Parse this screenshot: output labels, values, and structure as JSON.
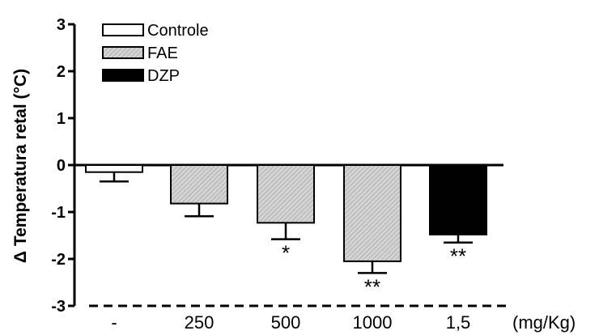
{
  "chart_data": {
    "type": "bar",
    "ylabel": "Δ Temperatura retal (°C)",
    "xunit": "(mg/Kg)",
    "ylim": [
      -3,
      3
    ],
    "yticks": [
      "3",
      "2",
      "1",
      "0",
      "-1",
      "-2",
      "-3"
    ],
    "categories": [
      "-",
      "250",
      "500",
      "1000",
      "1,5"
    ],
    "values": [
      -0.15,
      -0.82,
      -1.23,
      -2.05,
      -1.48
    ],
    "errors": [
      0.2,
      0.27,
      0.35,
      0.25,
      0.17
    ],
    "groups": [
      "Controle",
      "FAE",
      "FAE",
      "FAE",
      "DZP"
    ],
    "significance": [
      "",
      "",
      "*",
      "**",
      "**"
    ],
    "legend": {
      "position": "top-left",
      "entries": [
        {
          "label": "Controle",
          "fill": "#ffffff"
        },
        {
          "label": "FAE",
          "fill": "#c8c8c8"
        },
        {
          "label": "DZP",
          "fill": "#000000"
        }
      ]
    },
    "grid": false
  }
}
